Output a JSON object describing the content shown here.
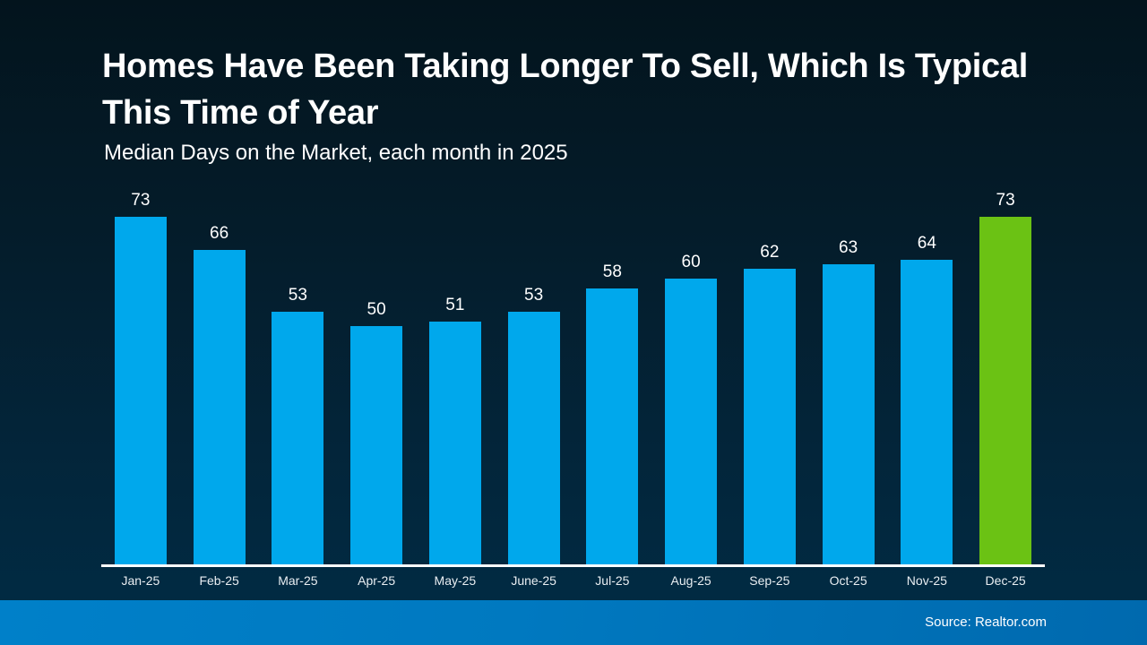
{
  "slide": {
    "title": "Homes Have Been Taking Longer To Sell, Which Is Typical This Time of Year",
    "subtitle": "Median Days on the Market, each month in 2025",
    "source": "Source: Realtor.com"
  },
  "colors": {
    "bar_blue": "#00a8ec",
    "bar_green_highlight": "#6bc214",
    "background_top": "#03141d",
    "background_bottom": "#002c45",
    "footer_blue": "#0079c0",
    "axis_white": "#ffffff",
    "text_white": "#ffffff"
  },
  "chart_data": {
    "type": "bar",
    "title": "Homes Have Been Taking Longer To Sell, Which Is Typical This Time of Year",
    "subtitle": "Median Days on the Market, each month in 2025",
    "categories": [
      "Jan-25",
      "Feb-25",
      "Mar-25",
      "Apr-25",
      "May-25",
      "June-25",
      "Jul-25",
      "Aug-25",
      "Sep-25",
      "Oct-25",
      "Nov-25",
      "Dec-25"
    ],
    "values": [
      73,
      66,
      53,
      50,
      51,
      53,
      58,
      60,
      62,
      63,
      64,
      73
    ],
    "xlabel": "",
    "ylabel": "",
    "ylim": [
      0,
      79
    ],
    "grid": false,
    "legend": false,
    "data_labels": true,
    "bar_color": "#00a8ec",
    "highlight_color": "#6bc214",
    "highlight_index": 11,
    "source": "Source: Realtor.com"
  }
}
